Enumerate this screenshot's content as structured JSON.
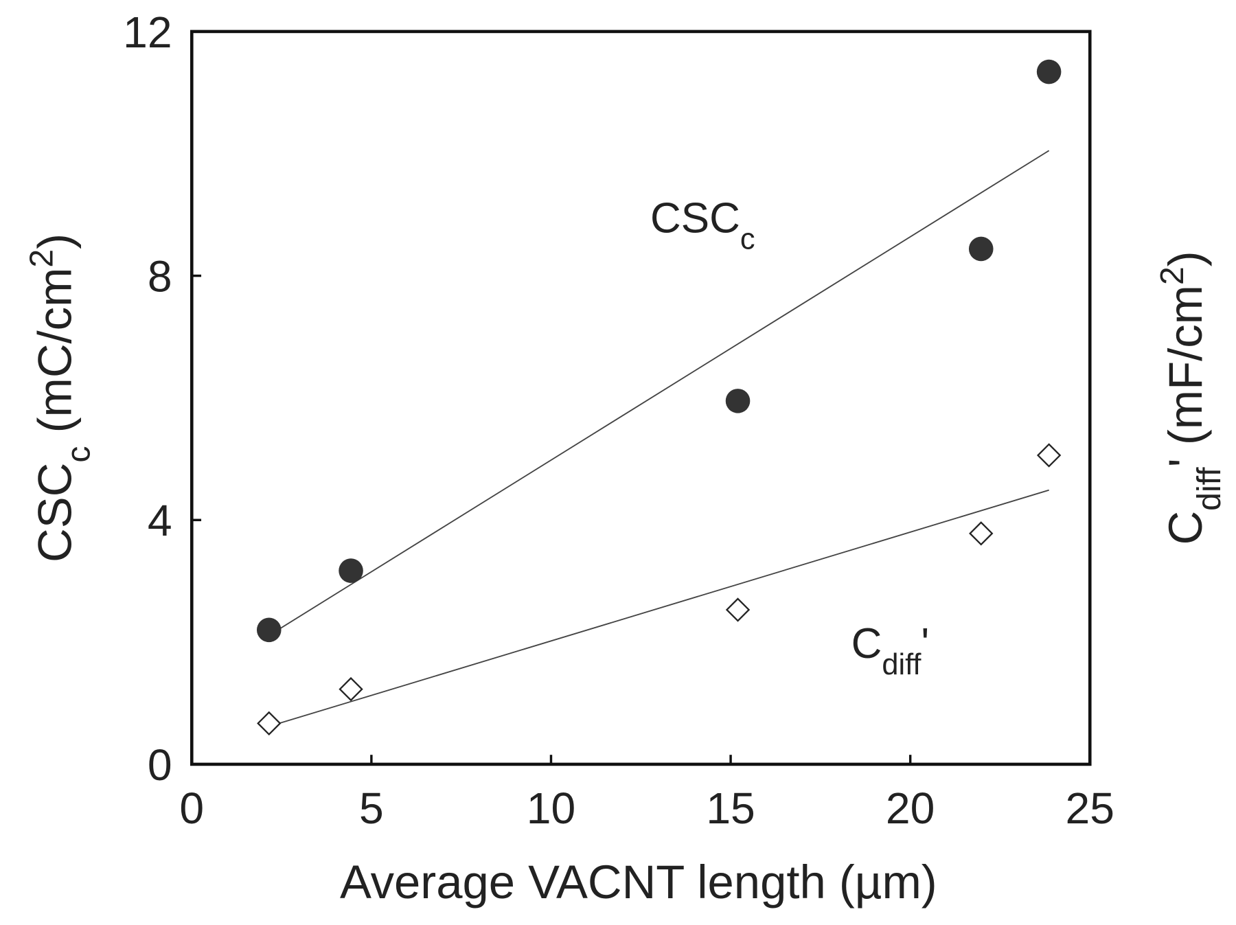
{
  "chart_data": {
    "type": "scatter",
    "x_label": "Average VACNT length (µm)",
    "y_label": {
      "text": "CSC",
      "sub": "c",
      "rest": " (mC/cm",
      "sup": "2",
      "end": ")"
    },
    "y2_label": {
      "text": "C",
      "sub": "diff",
      "rest": "' (mF/cm",
      "sup": "2",
      "end": ")"
    },
    "xlim": [
      0,
      25
    ],
    "xticks": [
      0,
      5,
      10,
      15,
      20,
      25
    ],
    "ylim": [
      0,
      12
    ],
    "yticks": [
      0,
      4,
      8,
      12
    ],
    "series": [
      {
        "label": {
          "text": "CSC",
          "sub": "c"
        },
        "marker": "circle",
        "color": "#333333",
        "x": [
          2.15,
          4.43,
          15.2,
          21.97,
          23.86
        ],
        "values": [
          2.2,
          3.17,
          5.95,
          8.44,
          11.34
        ],
        "fit": {
          "x": [
            2.15,
            23.86
          ],
          "values": [
            2.11,
            10.05
          ]
        }
      },
      {
        "label": {
          "text": "C",
          "sub": "diff",
          "rest": "'"
        },
        "marker": "diamond",
        "color": "#222222",
        "x": [
          2.15,
          4.43,
          15.2,
          21.97,
          23.86
        ],
        "values": [
          0.67,
          1.23,
          2.53,
          3.78,
          5.06
        ],
        "fit": {
          "x": [
            2.15,
            23.86
          ],
          "values": [
            0.62,
            4.49
          ]
        }
      }
    ]
  }
}
